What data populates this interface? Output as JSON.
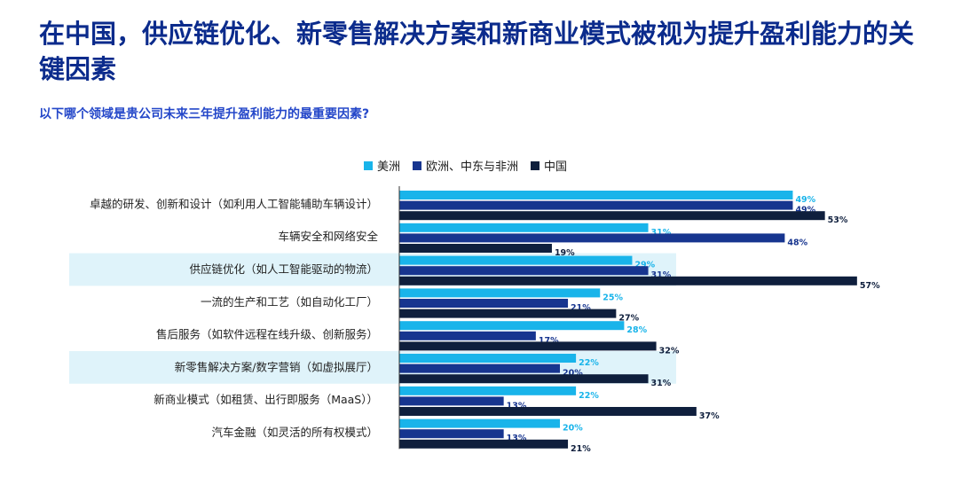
{
  "title": "在中国，供应链优化、新零售解决方案和新商业模式被视为提升盈利能力的关键因素",
  "subtitle": "以下哪个领域是贵公司未来三年提升盈利能力的最重要因素?",
  "colors": {
    "americas": "#19b4ea",
    "emea": "#17358f",
    "china": "#0f1f3d",
    "highlight": "#dff3fa",
    "title": "#0b2b8c"
  },
  "chart_data": {
    "type": "bar",
    "orientation": "horizontal",
    "legend_position": "top",
    "categories": [
      "卓越的研发、创新和设计（如利用人工智能辅助车辆设计）",
      "车辆安全和网络安全",
      "供应链优化（如人工智能驱动的物流）",
      "一流的生产和工艺（如自动化工厂）",
      "售后服务（如软件远程在线升级、创新服务）",
      "新零售解决方案/数字营销（如虚拟展厅）",
      "新商业模式（如租赁、出行即服务（MaaS））",
      "汽车金融（如灵活的所有权模式）"
    ],
    "highlighted_categories": [
      2,
      5
    ],
    "series": [
      {
        "name": "美洲",
        "values": [
          49,
          31,
          29,
          25,
          28,
          22,
          22,
          20
        ]
      },
      {
        "name": "欧洲、中东与非洲",
        "values": [
          49,
          48,
          31,
          21,
          17,
          20,
          13,
          13
        ]
      },
      {
        "name": "中国",
        "values": [
          53,
          19,
          57,
          27,
          32,
          31,
          37,
          21
        ]
      }
    ],
    "unit": "%",
    "xlim": [
      0,
      100
    ]
  }
}
